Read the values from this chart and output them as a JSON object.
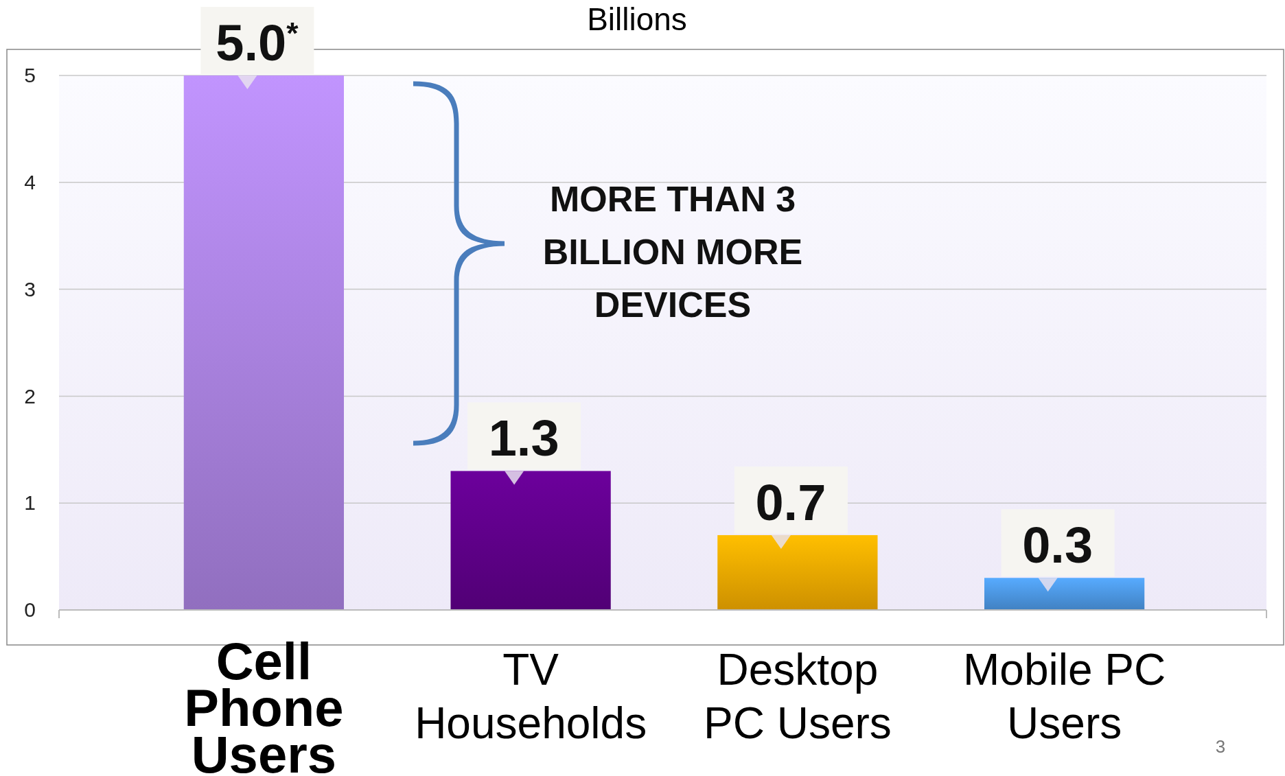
{
  "chart_data": {
    "type": "bar",
    "title": "Billions",
    "categories": [
      "Cell Phone Users",
      "TV Households",
      "Desktop PC Users",
      "Mobile PC Users"
    ],
    "values": [
      5.0,
      1.3,
      0.7,
      0.3
    ],
    "colors": [
      "#a47ed8",
      "#5c0085",
      "#e8a300",
      "#4a92dc"
    ],
    "value_labels": [
      "5.0$^{*}$",
      "1.3",
      "0.7",
      "0.3"
    ],
    "ylim": [
      0,
      5
    ],
    "yticks": [
      0,
      1,
      2,
      3,
      4,
      5
    ],
    "grid": "y",
    "annotations": [
      "MORE THAN 3 BILLION MORE DEVICES",
      "3"
    ]
  }
}
